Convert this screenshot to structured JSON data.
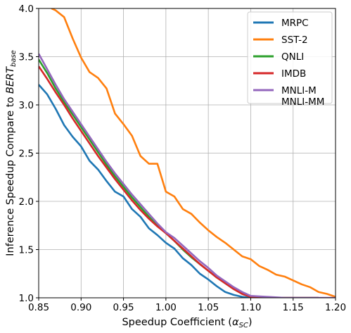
{
  "chart_data": {
    "type": "line",
    "title": "",
    "xlabel": "Speedup Coefficient (",
    "xlabel_symbol": "α",
    "xlabel_subscript": "SC",
    "xlabel_suffix": ")",
    "ylabel": "Inference Speedup Compare to ",
    "ylabel_italic": "BERT",
    "ylabel_subscript": "base",
    "xlim": [
      0.85,
      1.2
    ],
    "ylim": [
      1.0,
      4.0
    ],
    "xticks": [
      "0.85",
      "0.90",
      "0.95",
      "1.00",
      "1.05",
      "1.10",
      "1.15",
      "1.20"
    ],
    "yticks": [
      "1.0",
      "1.5",
      "2.0",
      "2.5",
      "3.0",
      "3.5",
      "4.0"
    ],
    "grid": true,
    "legend_position": "top-right",
    "series": [
      {
        "name": "MRPC",
        "color": "#1f77b4",
        "x": [
          0.85,
          0.86,
          0.87,
          0.88,
          0.89,
          0.9,
          0.91,
          0.92,
          0.93,
          0.94,
          0.95,
          0.96,
          0.97,
          0.98,
          0.99,
          1.0,
          1.01,
          1.02,
          1.03,
          1.04,
          1.05,
          1.06,
          1.07,
          1.08,
          1.09,
          1.1
        ],
        "y": [
          3.21,
          3.11,
          2.96,
          2.79,
          2.67,
          2.57,
          2.42,
          2.33,
          2.21,
          2.1,
          2.05,
          1.92,
          1.84,
          1.72,
          1.65,
          1.57,
          1.51,
          1.41,
          1.34,
          1.25,
          1.19,
          1.12,
          1.06,
          1.03,
          1.01,
          1.0
        ]
      },
      {
        "name": "SST-2",
        "color": "#ff7f0e",
        "x": [
          0.865,
          0.87,
          0.88,
          0.89,
          0.9,
          0.91,
          0.92,
          0.93,
          0.94,
          0.95,
          0.96,
          0.97,
          0.98,
          0.99,
          1.0,
          1.01,
          1.02,
          1.03,
          1.04,
          1.05,
          1.06,
          1.07,
          1.08,
          1.09,
          1.1,
          1.11,
          1.12,
          1.13,
          1.14,
          1.15,
          1.16,
          1.17,
          1.18,
          1.19,
          1.2
        ],
        "y": [
          4.0,
          3.98,
          3.91,
          3.69,
          3.49,
          3.34,
          3.28,
          3.17,
          2.91,
          2.8,
          2.68,
          2.47,
          2.39,
          2.39,
          2.1,
          2.05,
          1.92,
          1.87,
          1.78,
          1.7,
          1.63,
          1.57,
          1.5,
          1.43,
          1.4,
          1.33,
          1.29,
          1.24,
          1.22,
          1.18,
          1.14,
          1.11,
          1.06,
          1.04,
          1.01
        ]
      },
      {
        "name": "QNLI",
        "color": "#2ca02c",
        "x": [
          0.85,
          0.86,
          0.87,
          0.88,
          0.89,
          0.9,
          0.91,
          0.92,
          0.93,
          0.94,
          0.95,
          0.96,
          0.97,
          0.98,
          0.99,
          1.0,
          1.01,
          1.02,
          1.03,
          1.04,
          1.05,
          1.06,
          1.07,
          1.08,
          1.09,
          1.1,
          1.12,
          1.14,
          1.16,
          1.18
        ],
        "y": [
          3.47,
          3.33,
          3.17,
          3.03,
          2.9,
          2.77,
          2.64,
          2.51,
          2.38,
          2.26,
          2.15,
          2.04,
          1.94,
          1.84,
          1.75,
          1.67,
          1.59,
          1.5,
          1.42,
          1.35,
          1.28,
          1.21,
          1.15,
          1.09,
          1.04,
          1.01,
          1.0,
          1.0,
          1.0,
          1.0
        ]
      },
      {
        "name": "IMDB",
        "color": "#d62728",
        "x": [
          0.85,
          0.86,
          0.87,
          0.88,
          0.89,
          0.9,
          0.91,
          0.92,
          0.93,
          0.94,
          0.95,
          0.96,
          0.97,
          0.98,
          0.99,
          1.0,
          1.01,
          1.02,
          1.03,
          1.04,
          1.05,
          1.06,
          1.07,
          1.08,
          1.09,
          1.1,
          1.12,
          1.14,
          1.16,
          1.18
        ],
        "y": [
          3.4,
          3.27,
          3.13,
          3.0,
          2.86,
          2.73,
          2.6,
          2.47,
          2.35,
          2.23,
          2.12,
          2.01,
          1.91,
          1.82,
          1.74,
          1.67,
          1.59,
          1.51,
          1.43,
          1.35,
          1.28,
          1.21,
          1.15,
          1.09,
          1.04,
          1.01,
          1.0,
          1.0,
          1.0,
          1.0
        ]
      },
      {
        "name": "MNLI-M\nMNLI-MM",
        "color": "#9467bd",
        "x": [
          0.85,
          0.86,
          0.87,
          0.88,
          0.89,
          0.9,
          0.91,
          0.92,
          0.93,
          0.94,
          0.95,
          0.96,
          0.97,
          0.98,
          0.99,
          1.0,
          1.01,
          1.02,
          1.03,
          1.04,
          1.05,
          1.06,
          1.07,
          1.08,
          1.09,
          1.1,
          1.12,
          1.14,
          1.16,
          1.18,
          1.2
        ],
        "y": [
          3.53,
          3.37,
          3.21,
          3.06,
          2.93,
          2.8,
          2.67,
          2.54,
          2.41,
          2.29,
          2.18,
          2.07,
          1.97,
          1.87,
          1.77,
          1.68,
          1.62,
          1.54,
          1.46,
          1.38,
          1.31,
          1.23,
          1.17,
          1.11,
          1.06,
          1.02,
          1.01,
          1.0,
          1.0,
          1.0,
          1.0
        ]
      }
    ]
  }
}
